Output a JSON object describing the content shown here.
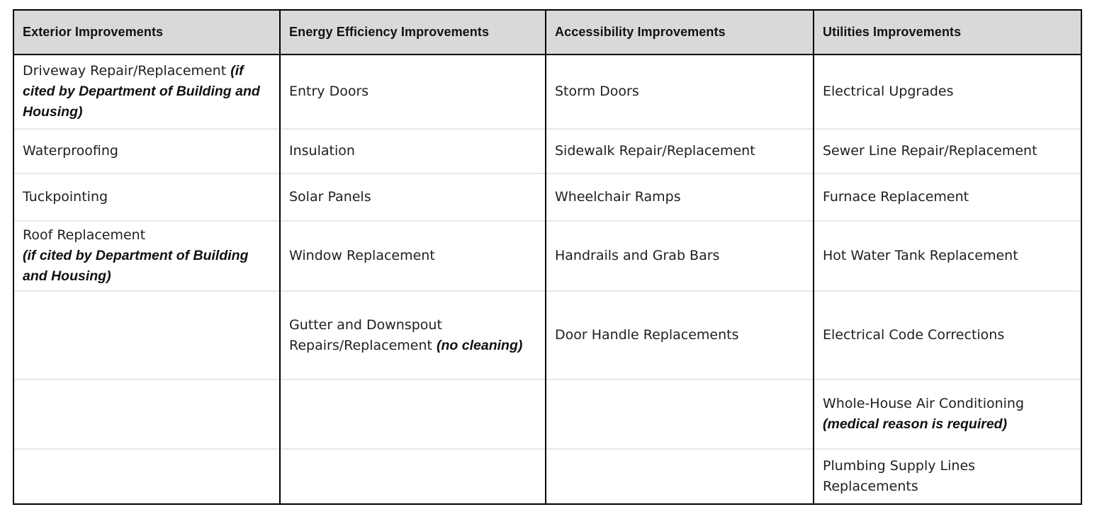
{
  "colors": {
    "header_bg": "#d9d9d9",
    "border_dark": "#000000",
    "border_light": "#e7e7e7",
    "header_text": "#121212",
    "body_text": "#202020",
    "page_bg": "#ffffff"
  },
  "table": {
    "columns": [
      {
        "header": "Exterior Improvements",
        "cells": [
          [
            [
              {
                "text": "Driveway Repair/Replacement "
              },
              {
                "text": "(if",
                "bold_italic": true
              }
            ],
            [
              {
                "text": "cited by Department of Building and",
                "bold_italic": true
              }
            ],
            [
              {
                "text": "Housing)",
                "bold_italic": true
              }
            ]
          ],
          [
            [
              {
                "text": "Waterproofing"
              }
            ]
          ],
          [
            [
              {
                "text": "Tuckpointing"
              }
            ]
          ],
          [
            [
              {
                "text": "Roof Replacement"
              }
            ],
            [
              {
                "text": "(if cited by Department of Building",
                "bold_italic": true
              }
            ],
            [
              {
                "text": "and Housing)",
                "bold_italic": true
              }
            ]
          ],
          [],
          [],
          []
        ]
      },
      {
        "header": "Energy Efficiency Improvements",
        "cells": [
          [
            [
              {
                "text": "Entry Doors"
              }
            ]
          ],
          [
            [
              {
                "text": "Insulation"
              }
            ]
          ],
          [
            [
              {
                "text": "Solar Panels"
              }
            ]
          ],
          [
            [
              {
                "text": "Window Replacement"
              }
            ]
          ],
          [
            [
              {
                "text": "Gutter and Downspout"
              }
            ],
            [
              {
                "text": "Repairs/Replacement "
              },
              {
                "text": "(no cleaning)",
                "bold_italic": true
              }
            ]
          ],
          [],
          []
        ]
      },
      {
        "header": "Accessibility Improvements",
        "cells": [
          [
            [
              {
                "text": "Storm Doors"
              }
            ]
          ],
          [
            [
              {
                "text": "Sidewalk Repair/Replacement"
              }
            ]
          ],
          [
            [
              {
                "text": "Wheelchair Ramps"
              }
            ]
          ],
          [
            [
              {
                "text": "Handrails and Grab Bars"
              }
            ]
          ],
          [
            [
              {
                "text": "Door Handle Replacements"
              }
            ]
          ],
          [],
          []
        ]
      },
      {
        "header": "Utilities Improvements",
        "cells": [
          [
            [
              {
                "text": "Electrical Upgrades"
              }
            ]
          ],
          [
            [
              {
                "text": "Sewer Line Repair/Replacement"
              }
            ]
          ],
          [
            [
              {
                "text": "Furnace Replacement"
              }
            ]
          ],
          [
            [
              {
                "text": "Hot Water Tank Replacement"
              }
            ]
          ],
          [
            [
              {
                "text": "Electrical Code Corrections"
              }
            ]
          ],
          [
            [
              {
                "text": "Whole-House Air Conditioning"
              }
            ],
            [
              {
                "text": "(medical reason is required)",
                "bold_italic": true
              }
            ]
          ],
          [
            [
              {
                "text": "Plumbing Supply Lines"
              }
            ],
            [
              {
                "text": "Replacements"
              }
            ]
          ]
        ]
      }
    ]
  }
}
